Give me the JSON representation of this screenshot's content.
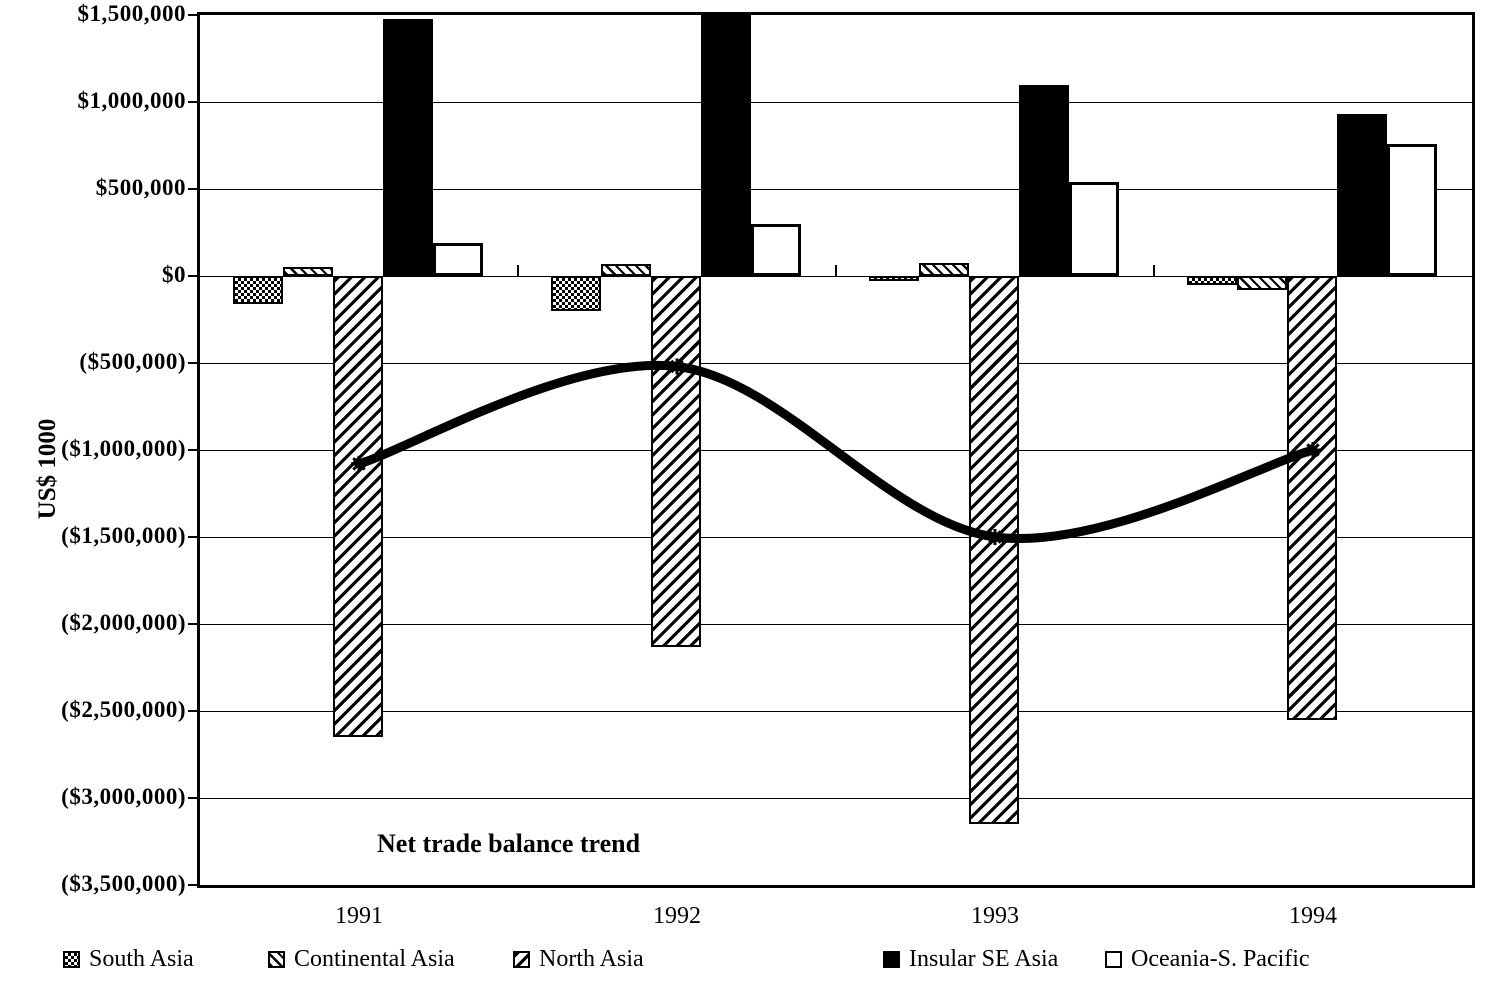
{
  "chart_data": {
    "type": "bar+line",
    "title": "",
    "ylabel": "US$ 1000",
    "xlabel": "",
    "annotation": "Net trade balance trend",
    "categories": [
      "1991",
      "1992",
      "1993",
      "1994"
    ],
    "ylim": [
      -3500000,
      1500000
    ],
    "ytick_interval": 500000,
    "ytick_labels": [
      "$1,500,000",
      "$1,000,000",
      "$500,000",
      "$0",
      "($500,000)",
      "($1,000,000)",
      "($1,500,000)",
      "($2,000,000)",
      "($2,500,000)",
      "($3,000,000)",
      "($3,500,000)"
    ],
    "grid": "horizontal",
    "legend_position": "bottom",
    "colors": {
      "foreground": "#000000",
      "background": "#ffffff"
    },
    "series": [
      {
        "name": "South Asia",
        "pattern": "checker-dot",
        "values": [
          -160000,
          -200000,
          -30000,
          -50000
        ]
      },
      {
        "name": "Continental Asia",
        "pattern": "backslash-hatch",
        "values": [
          50000,
          70000,
          75000,
          -80000
        ]
      },
      {
        "name": "North Asia",
        "pattern": "slash-hatch",
        "values": [
          -2650000,
          -2130000,
          -3150000,
          -2550000
        ]
      },
      {
        "name": "Insular SE Asia",
        "pattern": "solid-black",
        "values": [
          1475000,
          1500000,
          1100000,
          930000
        ]
      },
      {
        "name": "Oceania-S. Pacific",
        "pattern": "white",
        "values": [
          190000,
          300000,
          540000,
          760000
        ]
      }
    ],
    "trend_line": {
      "name": "Net trade balance trend",
      "marker": "asterisk",
      "values": [
        -1080000,
        -520000,
        -1500000,
        -1000000
      ]
    }
  }
}
